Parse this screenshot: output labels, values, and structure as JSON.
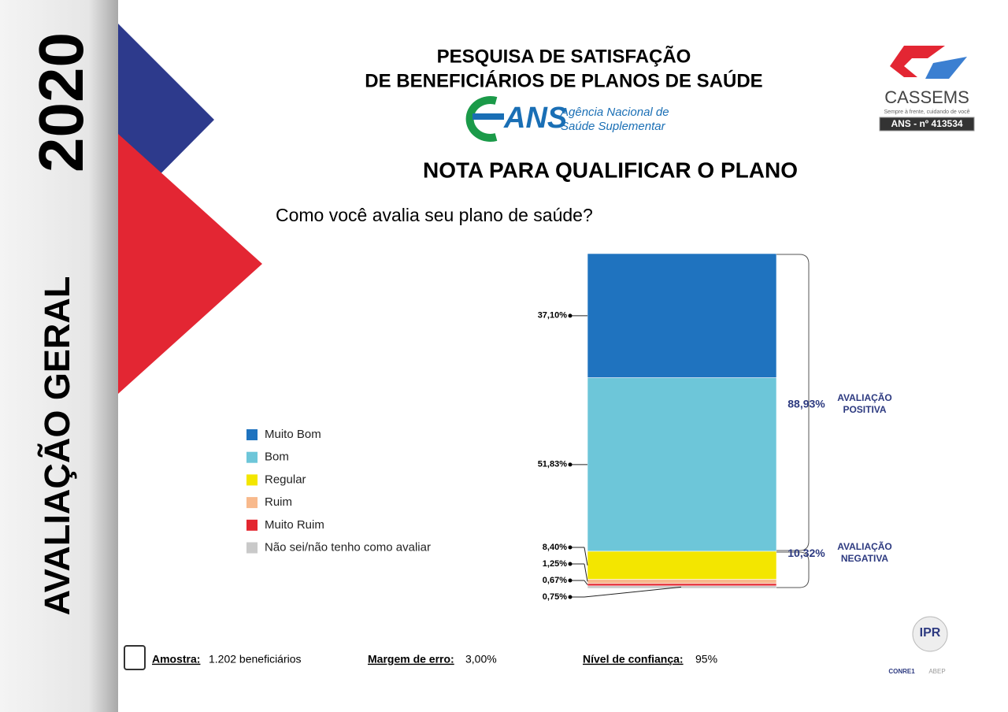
{
  "side": {
    "year": "2020",
    "section": "AVALIAÇÃO GERAL"
  },
  "header": {
    "title_line1": "PESQUISA DE SATISFAÇÃO",
    "title_line2": "DE BENEFICIÁRIOS DE PLANOS DE SAÚDE",
    "ans_logo": "ANS",
    "ans_name_line1": "Agência Nacional de",
    "ans_name_line2": "Saúde Suplementar"
  },
  "cassems": {
    "name": "CASSEMS",
    "tagline": "Sempre à frente, cuidando de você",
    "registry": "ANS - nº 413534"
  },
  "chart_data": {
    "type": "stacked-bar",
    "title": "NOTA PARA QUALIFICAR O PLANO",
    "subtitle": "Como você avalia seu plano de saúde?",
    "ylim": [
      0,
      100
    ],
    "series": [
      {
        "name": "Muito Bom",
        "color": "#1f73bf",
        "values": [
          37.1
        ],
        "value_labels": [
          "37,10%"
        ]
      },
      {
        "name": "Bom",
        "color": "#6dc6d9",
        "values": [
          51.83
        ],
        "value_labels": [
          "51,83%"
        ]
      },
      {
        "name": "Regular",
        "color": "#f3e600",
        "values": [
          8.4
        ],
        "value_labels": [
          "8,40%"
        ]
      },
      {
        "name": "Ruim",
        "color": "#f8b98c",
        "values": [
          1.25
        ],
        "value_labels": [
          "1,25%"
        ]
      },
      {
        "name": "Muito Ruim",
        "color": "#e3262f",
        "values": [
          0.67
        ],
        "value_labels": [
          "0,67%"
        ]
      },
      {
        "name": "Não sei/não tenho como avaliar",
        "color": "#c9c9c9",
        "values": [
          0.75
        ],
        "value_labels": [
          "0,75%"
        ]
      }
    ],
    "groups": [
      {
        "name": "AVALIAÇÃO POSITIVA",
        "value": 88.93,
        "value_label": "88,93%"
      },
      {
        "name": "AVALIAÇÃO NEGATIVA",
        "value": 10.32,
        "value_label": "10,32%"
      }
    ]
  },
  "footer": {
    "sample_label": "Amostra:",
    "sample_value": "1.202 beneficiários",
    "margin_label": "Margem de erro:",
    "margin_value": "3,00%",
    "confidence_label": "Nível de confiança:",
    "confidence_value": "95%",
    "ipr": "IPR",
    "conre": "CONRE1",
    "abep": "ABEP"
  }
}
